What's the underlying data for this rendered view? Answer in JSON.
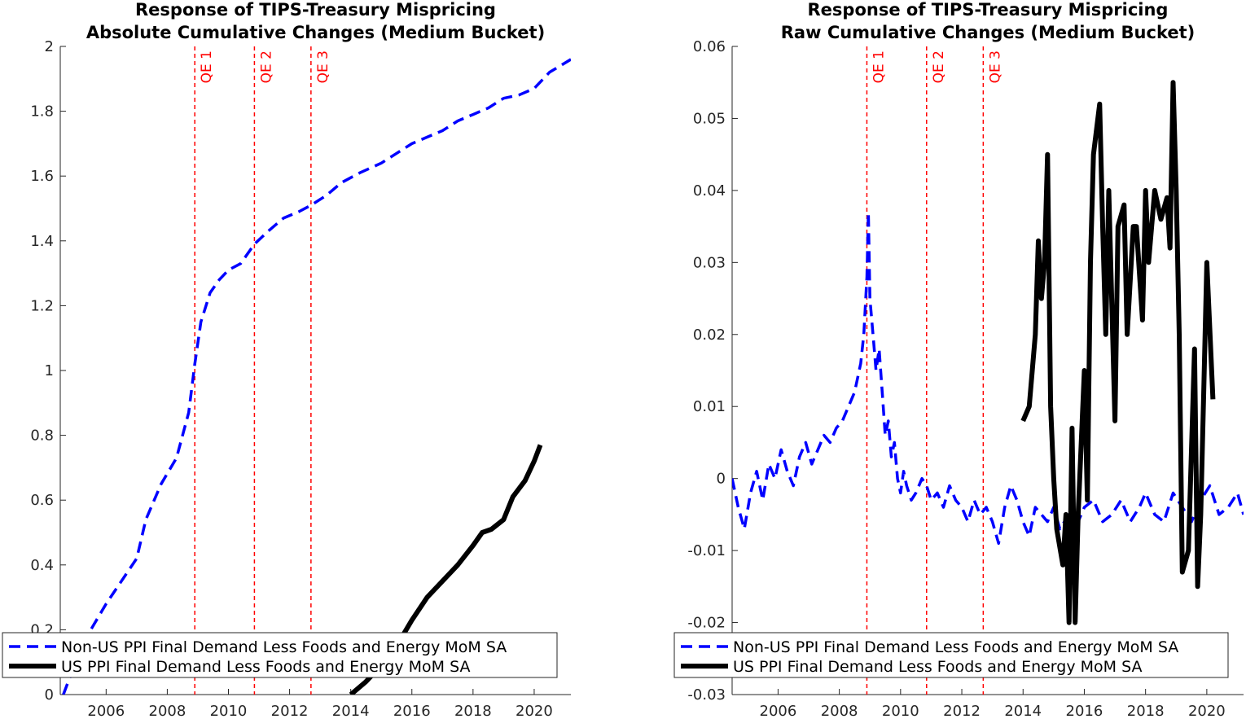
{
  "colors": {
    "series_dashed": "#0000ff",
    "series_solid": "#000000",
    "qe_line": "#ff0000"
  },
  "chart_data": [
    {
      "type": "line",
      "title": [
        "Response of TIPS-Treasury Mispricing",
        "Absolute Cumulative Changes (Medium Bucket)"
      ],
      "xlabel": "",
      "ylabel": "",
      "xlim": [
        2004.5,
        2021.2
      ],
      "ylim": [
        0,
        2
      ],
      "xticks": [
        2006,
        2008,
        2010,
        2012,
        2014,
        2016,
        2018,
        2020
      ],
      "yticks": [
        0,
        0.2,
        0.4,
        0.6,
        0.8,
        1,
        1.2,
        1.4,
        1.6,
        1.8,
        2
      ],
      "ytick_labels": [
        "0",
        "0.2",
        "0.4",
        "0.6",
        "0.8",
        "1",
        "1.2",
        "1.4",
        "1.6",
        "1.8",
        "2"
      ],
      "grid": false,
      "legend_location": "bottom-left",
      "vlines": [
        {
          "x": 2008.9,
          "label": "QE 1"
        },
        {
          "x": 2010.85,
          "label": "QE 2"
        },
        {
          "x": 2012.7,
          "label": "QE 3"
        }
      ],
      "series": [
        {
          "name": "Non-US PPI Final Demand Less Foods and Energy MoM SA",
          "style": "dashed",
          "x": [
            2004.6,
            2005.0,
            2005.5,
            2006.0,
            2006.5,
            2007.0,
            2007.3,
            2007.8,
            2008.3,
            2008.7,
            2008.9,
            2009.1,
            2009.4,
            2009.7,
            2010.0,
            2010.4,
            2010.85,
            2011.3,
            2011.8,
            2012.3,
            2012.7,
            2013.2,
            2013.7,
            2014.3,
            2015.0,
            2015.5,
            2016.0,
            2016.5,
            2017.0,
            2017.5,
            2018.0,
            2018.5,
            2019.0,
            2019.5,
            2020.0,
            2020.5,
            2021.2
          ],
          "y": [
            0.0,
            0.1,
            0.2,
            0.28,
            0.35,
            0.42,
            0.54,
            0.65,
            0.73,
            0.87,
            1.02,
            1.15,
            1.24,
            1.28,
            1.31,
            1.33,
            1.39,
            1.43,
            1.47,
            1.49,
            1.51,
            1.54,
            1.58,
            1.61,
            1.64,
            1.67,
            1.7,
            1.72,
            1.74,
            1.77,
            1.79,
            1.81,
            1.84,
            1.85,
            1.87,
            1.92,
            1.96
          ]
        },
        {
          "name": "US PPI Final Demand Less Foods and Energy MoM SA",
          "style": "solid",
          "x": [
            2014.0,
            2014.5,
            2015.0,
            2015.5,
            2016.0,
            2016.5,
            2017.0,
            2017.5,
            2018.0,
            2018.3,
            2018.6,
            2019.0,
            2019.3,
            2019.7,
            2020.0,
            2020.2
          ],
          "y": [
            0.0,
            0.04,
            0.09,
            0.15,
            0.23,
            0.3,
            0.35,
            0.4,
            0.46,
            0.5,
            0.51,
            0.54,
            0.61,
            0.66,
            0.72,
            0.77
          ]
        }
      ]
    },
    {
      "type": "line",
      "title": [
        "Response of TIPS-Treasury Mispricing",
        "Raw Cumulative Changes (Medium Bucket)"
      ],
      "xlabel": "",
      "ylabel": "",
      "xlim": [
        2004.5,
        2021.2
      ],
      "ylim": [
        -0.03,
        0.06
      ],
      "xticks": [
        2006,
        2008,
        2010,
        2012,
        2014,
        2016,
        2018,
        2020
      ],
      "yticks": [
        -0.03,
        -0.02,
        -0.01,
        0,
        0.01,
        0.02,
        0.03,
        0.04,
        0.05,
        0.06
      ],
      "ytick_labels": [
        "-0.03",
        "-0.02",
        "-0.01",
        "0",
        "0.01",
        "0.02",
        "0.03",
        "0.04",
        "0.05",
        "0.06"
      ],
      "grid": false,
      "legend_location": "bottom-left",
      "vlines": [
        {
          "x": 2008.9,
          "label": "QE 1"
        },
        {
          "x": 2010.85,
          "label": "QE 2"
        },
        {
          "x": 2012.7,
          "label": "QE 3"
        }
      ],
      "series": [
        {
          "name": "Non-US PPI Final Demand Less Foods and Energy MoM SA",
          "style": "dashed",
          "x": [
            2004.5,
            2004.7,
            2004.9,
            2005.1,
            2005.3,
            2005.5,
            2005.7,
            2005.9,
            2006.1,
            2006.3,
            2006.5,
            2006.7,
            2006.9,
            2007.1,
            2007.3,
            2007.5,
            2007.7,
            2007.9,
            2008.1,
            2008.3,
            2008.5,
            2008.7,
            2008.8,
            2008.9,
            2008.95,
            2009.0,
            2009.1,
            2009.2,
            2009.3,
            2009.4,
            2009.5,
            2009.6,
            2009.7,
            2009.8,
            2009.9,
            2010.0,
            2010.1,
            2010.2,
            2010.35,
            2010.5,
            2010.7,
            2010.85,
            2011.0,
            2011.2,
            2011.4,
            2011.6,
            2011.8,
            2012.0,
            2012.2,
            2012.4,
            2012.6,
            2012.8,
            2013.0,
            2013.2,
            2013.4,
            2013.6,
            2013.8,
            2014.0,
            2014.2,
            2014.4,
            2014.6,
            2014.8,
            2015.0,
            2015.2,
            2015.5,
            2015.8,
            2016.0,
            2016.3,
            2016.6,
            2016.9,
            2017.2,
            2017.5,
            2017.8,
            2018.0,
            2018.3,
            2018.6,
            2018.9,
            2019.2,
            2019.5,
            2019.8,
            2020.1,
            2020.4,
            2020.7,
            2021.0,
            2021.2
          ],
          "y": [
            0.0,
            -0.004,
            -0.007,
            -0.002,
            0.001,
            -0.003,
            0.002,
            0.0,
            0.004,
            0.001,
            -0.001,
            0.003,
            0.005,
            0.002,
            0.004,
            0.006,
            0.005,
            0.007,
            0.008,
            0.01,
            0.012,
            0.016,
            0.02,
            0.028,
            0.037,
            0.025,
            0.02,
            0.015,
            0.018,
            0.012,
            0.006,
            0.008,
            0.003,
            0.005,
            0.0,
            -0.002,
            0.001,
            -0.001,
            -0.003,
            -0.002,
            0.0,
            -0.001,
            -0.003,
            -0.002,
            -0.004,
            -0.001,
            -0.003,
            -0.004,
            -0.006,
            -0.003,
            -0.005,
            -0.004,
            -0.006,
            -0.009,
            -0.004,
            -0.001,
            -0.003,
            -0.006,
            -0.008,
            -0.004,
            -0.005,
            -0.006,
            -0.004,
            -0.007,
            -0.005,
            -0.006,
            -0.004,
            -0.003,
            -0.006,
            -0.005,
            -0.003,
            -0.006,
            -0.004,
            -0.002,
            -0.005,
            -0.006,
            -0.002,
            -0.004,
            -0.006,
            -0.003,
            -0.001,
            -0.005,
            -0.004,
            -0.002,
            -0.005
          ]
        },
        {
          "name": "US PPI Final Demand Less Foods and Energy MoM SA",
          "style": "solid",
          "x": [
            2014.0,
            2014.2,
            2014.4,
            2014.5,
            2014.6,
            2014.7,
            2014.8,
            2014.9,
            2015.0,
            2015.1,
            2015.3,
            2015.4,
            2015.5,
            2015.6,
            2015.7,
            2015.8,
            2016.0,
            2016.1,
            2016.2,
            2016.3,
            2016.5,
            2016.6,
            2016.7,
            2016.8,
            2017.0,
            2017.1,
            2017.3,
            2017.4,
            2017.6,
            2017.7,
            2017.9,
            2018.0,
            2018.1,
            2018.3,
            2018.5,
            2018.7,
            2018.8,
            2018.9,
            2019.0,
            2019.1,
            2019.2,
            2019.4,
            2019.6,
            2019.7,
            2019.8,
            2019.9,
            2020.0,
            2020.2
          ],
          "y": [
            0.008,
            0.01,
            0.02,
            0.033,
            0.025,
            0.03,
            0.045,
            0.01,
            0.0,
            -0.007,
            -0.012,
            -0.005,
            -0.02,
            0.007,
            -0.02,
            -0.005,
            0.015,
            -0.003,
            0.03,
            0.045,
            0.052,
            0.035,
            0.02,
            0.04,
            0.008,
            0.035,
            0.038,
            0.02,
            0.035,
            0.035,
            0.022,
            0.04,
            0.03,
            0.04,
            0.036,
            0.039,
            0.032,
            0.055,
            0.04,
            0.02,
            -0.013,
            -0.01,
            0.018,
            -0.015,
            -0.005,
            0.012,
            0.03,
            0.011
          ]
        }
      ]
    }
  ]
}
